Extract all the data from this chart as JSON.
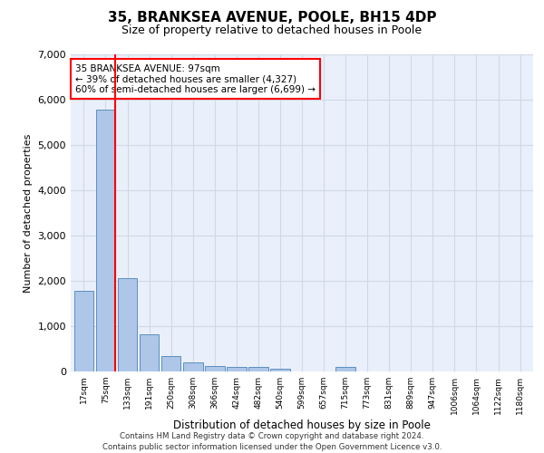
{
  "title": "35, BRANKSEA AVENUE, POOLE, BH15 4DP",
  "subtitle": "Size of property relative to detached houses in Poole",
  "xlabel": "Distribution of detached houses by size in Poole",
  "ylabel": "Number of detached properties",
  "categories": [
    "17sqm",
    "75sqm",
    "133sqm",
    "191sqm",
    "250sqm",
    "308sqm",
    "366sqm",
    "424sqm",
    "482sqm",
    "540sqm",
    "599sqm",
    "657sqm",
    "715sqm",
    "773sqm",
    "831sqm",
    "889sqm",
    "947sqm",
    "1006sqm",
    "1064sqm",
    "1122sqm",
    "1180sqm"
  ],
  "values": [
    1780,
    5780,
    2060,
    820,
    340,
    195,
    120,
    105,
    95,
    70,
    0,
    0,
    95,
    0,
    0,
    0,
    0,
    0,
    0,
    0,
    0
  ],
  "bar_color": "#aec6e8",
  "bar_edge_color": "#5a8fc0",
  "annotation_text": "35 BRANKSEA AVENUE: 97sqm\n← 39% of detached houses are smaller (4,327)\n60% of semi-detached houses are larger (6,699) →",
  "annotation_box_color": "white",
  "annotation_box_edge": "red",
  "grid_color": "#d0d8e8",
  "bg_color": "#eaf0fb",
  "footer1": "Contains HM Land Registry data © Crown copyright and database right 2024.",
  "footer2": "Contains public sector information licensed under the Open Government Licence v3.0.",
  "ylim": [
    0,
    7000
  ],
  "yticks": [
    0,
    1000,
    2000,
    3000,
    4000,
    5000,
    6000,
    7000
  ]
}
